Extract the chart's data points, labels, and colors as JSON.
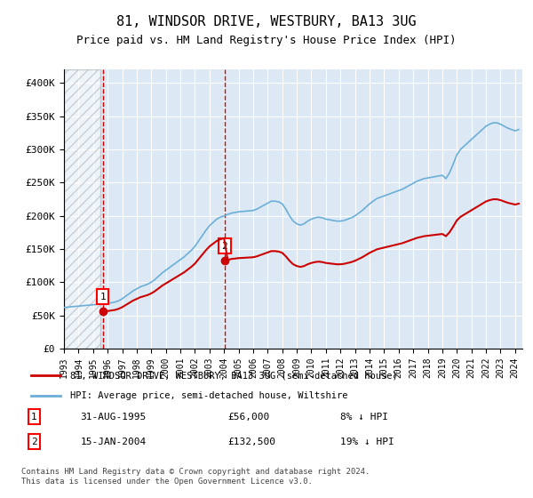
{
  "title": "81, WINDSOR DRIVE, WESTBURY, BA13 3UG",
  "subtitle": "Price paid vs. HM Land Registry's House Price Index (HPI)",
  "footer": "Contains HM Land Registry data © Crown copyright and database right 2024.\nThis data is licensed under the Open Government Licence v3.0.",
  "legend_line1": "81, WINDSOR DRIVE, WESTBURY, BA13 3UG (semi-detached house)",
  "legend_line2": "HPI: Average price, semi-detached house, Wiltshire",
  "sale1_label": "1",
  "sale1_date": "31-AUG-1995",
  "sale1_price": "£56,000",
  "sale1_hpi": "8% ↓ HPI",
  "sale1_x": 1995.67,
  "sale1_y": 56000,
  "sale2_label": "2",
  "sale2_date": "15-JAN-2004",
  "sale2_price": "£132,500",
  "sale2_hpi": "19% ↓ HPI",
  "sale2_x": 2004.04,
  "sale2_y": 132500,
  "hpi_color": "#6baed6",
  "sale_color": "#cc0000",
  "hatch_color": "#c0c0c0",
  "background_color": "#dce9f5",
  "ylim": [
    0,
    420000
  ],
  "xlim_start": 1993,
  "xlim_end": 2024.5,
  "hpi_data": {
    "years": [
      1993,
      1993.25,
      1993.5,
      1993.75,
      1994,
      1994.25,
      1994.5,
      1994.75,
      1995,
      1995.25,
      1995.5,
      1995.75,
      1996,
      1996.25,
      1996.5,
      1996.75,
      1997,
      1997.25,
      1997.5,
      1997.75,
      1998,
      1998.25,
      1998.5,
      1998.75,
      1999,
      1999.25,
      1999.5,
      1999.75,
      2000,
      2000.25,
      2000.5,
      2000.75,
      2001,
      2001.25,
      2001.5,
      2001.75,
      2002,
      2002.25,
      2002.5,
      2002.75,
      2003,
      2003.25,
      2003.5,
      2003.75,
      2004,
      2004.25,
      2004.5,
      2004.75,
      2005,
      2005.25,
      2005.5,
      2005.75,
      2006,
      2006.25,
      2006.5,
      2006.75,
      2007,
      2007.25,
      2007.5,
      2007.75,
      2008,
      2008.25,
      2008.5,
      2008.75,
      2009,
      2009.25,
      2009.5,
      2009.75,
      2010,
      2010.25,
      2010.5,
      2010.75,
      2011,
      2011.25,
      2011.5,
      2011.75,
      2012,
      2012.25,
      2012.5,
      2012.75,
      2013,
      2013.25,
      2013.5,
      2013.75,
      2014,
      2014.25,
      2014.5,
      2014.75,
      2015,
      2015.25,
      2015.5,
      2015.75,
      2016,
      2016.25,
      2016.5,
      2016.75,
      2017,
      2017.25,
      2017.5,
      2017.75,
      2018,
      2018.25,
      2018.5,
      2018.75,
      2019,
      2019.25,
      2019.5,
      2019.75,
      2020,
      2020.25,
      2020.5,
      2020.75,
      2021,
      2021.25,
      2021.5,
      2021.75,
      2022,
      2022.25,
      2022.5,
      2022.75,
      2023,
      2023.25,
      2023.5,
      2023.75,
      2024,
      2024.25
    ],
    "values": [
      62000,
      62500,
      63000,
      63500,
      64000,
      64500,
      65000,
      65500,
      66000,
      66500,
      67000,
      67500,
      68000,
      69000,
      70000,
      72000,
      75000,
      79000,
      83000,
      87000,
      90000,
      93000,
      95000,
      97000,
      100000,
      104000,
      109000,
      114000,
      118000,
      122000,
      126000,
      130000,
      134000,
      138000,
      143000,
      148000,
      154000,
      162000,
      170000,
      178000,
      185000,
      190000,
      195000,
      198000,
      200000,
      202000,
      204000,
      205000,
      206000,
      206500,
      207000,
      207500,
      208000,
      210000,
      213000,
      216000,
      219000,
      222000,
      222000,
      221000,
      218000,
      210000,
      200000,
      192000,
      188000,
      186000,
      188000,
      192000,
      195000,
      197000,
      198000,
      197000,
      195000,
      194000,
      193000,
      192000,
      192000,
      193000,
      195000,
      197000,
      200000,
      204000,
      208000,
      213000,
      218000,
      222000,
      226000,
      228000,
      230000,
      232000,
      234000,
      236000,
      238000,
      240000,
      243000,
      246000,
      249000,
      252000,
      254000,
      256000,
      257000,
      258000,
      259000,
      260000,
      261000,
      256000,
      265000,
      278000,
      292000,
      300000,
      305000,
      310000,
      315000,
      320000,
      325000,
      330000,
      335000,
      338000,
      340000,
      340000,
      338000,
      335000,
      332000,
      330000,
      328000,
      330000
    ]
  }
}
